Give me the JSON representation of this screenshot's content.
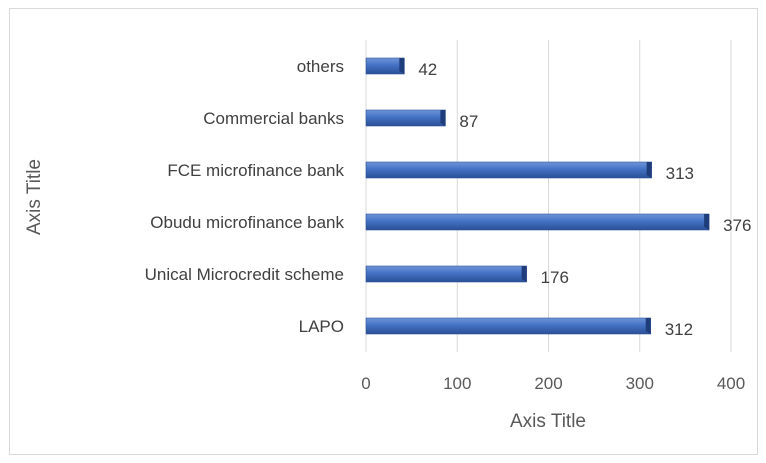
{
  "chart_data": {
    "type": "bar",
    "orientation": "horizontal",
    "categories": [
      "LAPO",
      "Unical Microcredit scheme",
      "Obudu microfinance bank",
      "FCE microfinance bank",
      "Commercial banks",
      "others"
    ],
    "values": [
      312,
      176,
      376,
      313,
      87,
      42
    ],
    "xlabel": "Axis Title",
    "ylabel": "Axis Title",
    "xlim": [
      0,
      400
    ],
    "xticks": [
      0,
      100,
      200,
      300,
      400
    ],
    "grid": "vertical",
    "legend": "none",
    "colors": {
      "bar": "#4472c4",
      "bar_dark": "#1f3d7a",
      "grid": "#d9d9d9",
      "text": "#595959"
    }
  }
}
